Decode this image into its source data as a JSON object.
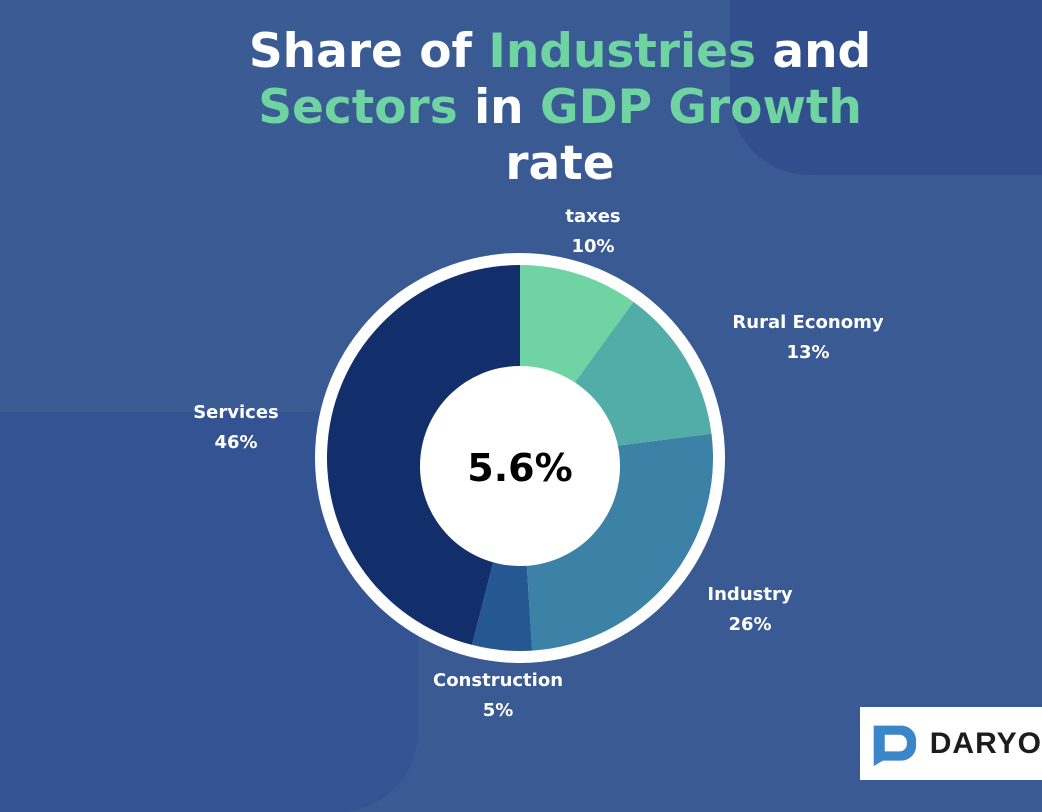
{
  "title": {
    "part1": "Share of ",
    "part2": "Industries",
    "part3": " and",
    "part4": "Sectors",
    "part5": " in ",
    "part6": "GDP Growth",
    "part7": "rate"
  },
  "colors": {
    "background": "#3a5a94",
    "accent_text": "#6fd3a2",
    "ring": "#ffffff"
  },
  "chart_data": {
    "type": "pie",
    "center_label": "5.6%",
    "slices": [
      {
        "label": "taxes",
        "value": 10,
        "value_label": "10%",
        "color": "#70d3a3"
      },
      {
        "label": "Rural Economy",
        "value": 13,
        "value_label": "13%",
        "color": "#52aca8"
      },
      {
        "label": "Industry",
        "value": 26,
        "value_label": "26%",
        "color": "#3c82a6"
      },
      {
        "label": "Construction",
        "value": 5,
        "value_label": "5%",
        "color": "#255893"
      },
      {
        "label": "Services",
        "value": 46,
        "value_label": "46%",
        "color": "#122f6c"
      }
    ]
  },
  "logo": {
    "text": "DARYO",
    "color": "#3a86c8"
  }
}
